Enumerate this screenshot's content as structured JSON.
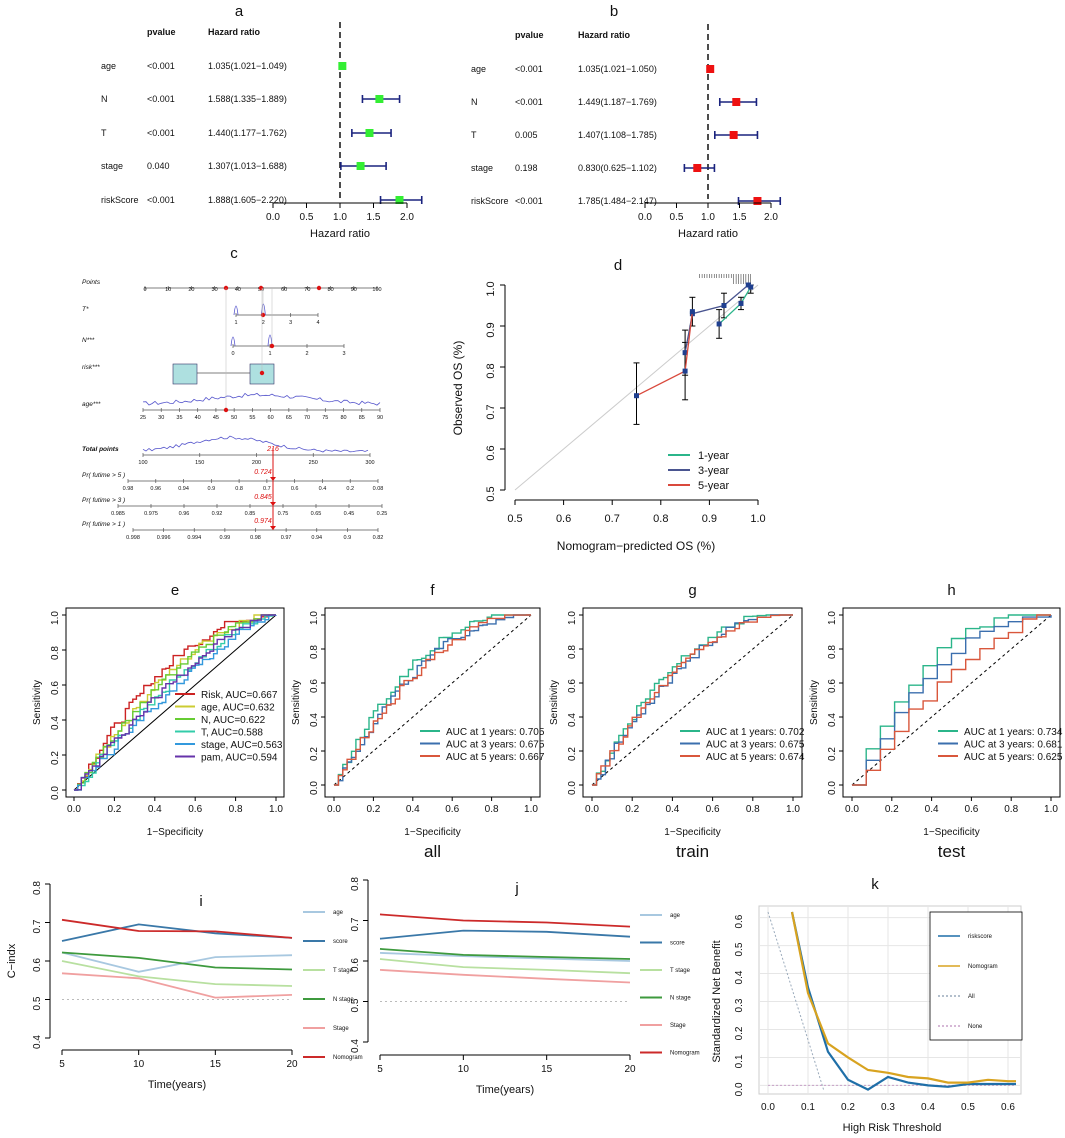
{
  "chart_data": [
    {
      "id": "a",
      "type": "forest",
      "label": "a",
      "col_pvalue": "pvalue",
      "col_hr": "Hazard ratio",
      "xlabel": "Hazard ratio",
      "ticks": [
        "0.0",
        "0.5",
        "1.0",
        "1.5",
        "2.0"
      ],
      "xlim": [
        0,
        2.0
      ],
      "rows": [
        {
          "name": "age",
          "pvalue": "<0.001",
          "hr_text": "1.035(1.021−1.049)",
          "hr": 1.035,
          "lo": 1.021,
          "hi": 1.049
        },
        {
          "name": "N",
          "pvalue": "<0.001",
          "hr_text": "1.588(1.335−1.889)",
          "hr": 1.588,
          "lo": 1.335,
          "hi": 1.889
        },
        {
          "name": "T",
          "pvalue": "<0.001",
          "hr_text": "1.440(1.177−1.762)",
          "hr": 1.44,
          "lo": 1.177,
          "hi": 1.762
        },
        {
          "name": "stage",
          "pvalue": "0.040",
          "hr_text": "1.307(1.013−1.688)",
          "hr": 1.307,
          "lo": 1.013,
          "hi": 1.688
        },
        {
          "name": "riskScore",
          "pvalue": "<0.001",
          "hr_text": "1.888(1.605−2.220)",
          "hr": 1.888,
          "lo": 1.605,
          "hi": 2.22
        }
      ],
      "marker_color": "#33ee33"
    },
    {
      "id": "b",
      "type": "forest",
      "label": "b",
      "col_pvalue": "pvalue",
      "col_hr": "Hazard ratio",
      "xlabel": "Hazard ratio",
      "ticks": [
        "0.0",
        "0.5",
        "1.0",
        "1.5",
        "2.0"
      ],
      "xlim": [
        0,
        2.0
      ],
      "rows": [
        {
          "name": "age",
          "pvalue": "<0.001",
          "hr_text": "1.035(1.021−1.050)",
          "hr": 1.035,
          "lo": 1.021,
          "hi": 1.05
        },
        {
          "name": "N",
          "pvalue": "<0.001",
          "hr_text": "1.449(1.187−1.769)",
          "hr": 1.449,
          "lo": 1.187,
          "hi": 1.769
        },
        {
          "name": "T",
          "pvalue": "0.005",
          "hr_text": "1.407(1.108−1.785)",
          "hr": 1.407,
          "lo": 1.108,
          "hi": 1.785
        },
        {
          "name": "stage",
          "pvalue": "0.198",
          "hr_text": "0.830(0.625−1.102)",
          "hr": 0.83,
          "lo": 0.625,
          "hi": 1.102
        },
        {
          "name": "riskScore",
          "pvalue": "<0.001",
          "hr_text": "1.785(1.484−2.147)",
          "hr": 1.785,
          "lo": 1.484,
          "hi": 2.147
        }
      ],
      "marker_color": "#ee1111"
    },
    {
      "id": "c",
      "type": "nomogram",
      "label": "c",
      "rows": [
        {
          "name": "Points",
          "ticks": [
            "0",
            "10",
            "20",
            "30",
            "40",
            "50",
            "60",
            "70",
            "80",
            "90",
            "100"
          ]
        },
        {
          "name": "T*",
          "ticks": [
            "1",
            "2",
            "3",
            "4"
          ]
        },
        {
          "name": "N***",
          "ticks": [
            "0",
            "1",
            "2",
            "3"
          ]
        },
        {
          "name": "risk***",
          "ticks": [
            "low",
            "high"
          ]
        },
        {
          "name": "age***",
          "ticks": [
            "25",
            "30",
            "35",
            "40",
            "45",
            "50",
            "55",
            "60",
            "65",
            "70",
            "75",
            "80",
            "85",
            "90"
          ]
        },
        {
          "name": "Total points",
          "ticks": [
            "100",
            "150",
            "200",
            "250",
            "300"
          ]
        },
        {
          "name": "Pr( futime > 5 )",
          "ticks": [
            "0.98",
            "0.96",
            "0.94",
            "0.9",
            "0.8",
            "0.7",
            "0.6",
            "0.4",
            "0.2",
            "0.08"
          ]
        },
        {
          "name": "Pr( futime > 3 )",
          "ticks": [
            "0.985",
            "0.975",
            "0.96",
            "0.92",
            "0.85",
            "0.75",
            "0.65",
            "0.45",
            "0.25"
          ]
        },
        {
          "name": "Pr( futime > 1 )",
          "ticks": [
            "0.998",
            "0.996",
            "0.994",
            "0.99",
            "0.98",
            "0.97",
            "0.94",
            "0.9",
            "0.82"
          ]
        }
      ],
      "total_points_value": "216",
      "prob_values": [
        "0.724",
        "0.845",
        "0.974"
      ]
    },
    {
      "id": "d",
      "type": "calibration",
      "label": "d",
      "xlabel": "Nomogram−predicted OS (%)",
      "ylabel": "Observed OS (%)",
      "ticks": [
        "0.5",
        "0.6",
        "0.7",
        "0.8",
        "0.9",
        "1.0"
      ],
      "xlim": [
        0.5,
        1.0
      ],
      "ylim": [
        0.5,
        1.0
      ],
      "series": [
        {
          "name": "1-year",
          "color": "#2bb58a",
          "x": [
            0.92,
            0.965,
            0.985
          ],
          "y": [
            0.905,
            0.955,
            0.995
          ]
        },
        {
          "name": "3-year",
          "color": "#4a5590",
          "x": [
            0.85,
            0.865,
            0.93,
            0.98
          ],
          "y": [
            0.835,
            0.93,
            0.95,
            1.0
          ]
        },
        {
          "name": "5-year",
          "color": "#d9493c",
          "x": [
            0.75,
            0.85,
            0.865
          ],
          "y": [
            0.73,
            0.79,
            0.935
          ]
        }
      ]
    },
    {
      "id": "e",
      "type": "roc",
      "label": "e",
      "xlabel": "1−Specificity",
      "ylabel": "Sensitivity",
      "ticks": [
        "0.0",
        "0.2",
        "0.4",
        "0.6",
        "0.8",
        "1.0"
      ],
      "series": [
        {
          "name": "Risk, AUC=0.667",
          "color": "#cc2222",
          "auc": 0.667
        },
        {
          "name": "age, AUC=0.632",
          "color": "#cccc33",
          "auc": 0.632
        },
        {
          "name": "N, AUC=0.622",
          "color": "#66cc33",
          "auc": 0.622
        },
        {
          "name": "T, AUC=0.588",
          "color": "#33ccaa",
          "auc": 0.588
        },
        {
          "name": "stage, AUC=0.563",
          "color": "#3399dd",
          "auc": 0.563
        },
        {
          "name": "pam, AUC=0.594",
          "color": "#6633aa",
          "auc": 0.594
        }
      ]
    },
    {
      "id": "f",
      "type": "roc",
      "label": "f",
      "caption": "all",
      "xlabel": "1−Specificity",
      "ylabel": "Sensitivity",
      "ticks": [
        "0.0",
        "0.2",
        "0.4",
        "0.6",
        "0.8",
        "1.0"
      ],
      "series": [
        {
          "name": "AUC at 1 years: 0.705",
          "color": "#2bb58a",
          "auc": 0.705
        },
        {
          "name": "AUC at 3 years: 0.675",
          "color": "#3b6fae",
          "auc": 0.675
        },
        {
          "name": "AUC at 5 years: 0.667",
          "color": "#d9573c",
          "auc": 0.667
        }
      ]
    },
    {
      "id": "g",
      "type": "roc",
      "label": "g",
      "caption": "train",
      "xlabel": "1−Specificity",
      "ylabel": "Sensitivity",
      "ticks": [
        "0.0",
        "0.2",
        "0.4",
        "0.6",
        "0.8",
        "1.0"
      ],
      "series": [
        {
          "name": "AUC at 1 years: 0.702",
          "color": "#2bb58a",
          "auc": 0.702
        },
        {
          "name": "AUC at 3 years: 0.675",
          "color": "#3b6fae",
          "auc": 0.675
        },
        {
          "name": "AUC at 5 years: 0.674",
          "color": "#d9573c",
          "auc": 0.674
        }
      ]
    },
    {
      "id": "h",
      "type": "roc",
      "label": "h",
      "caption": "test",
      "xlabel": "1−Specificity",
      "ylabel": "Sensitivity",
      "ticks": [
        "0.0",
        "0.2",
        "0.4",
        "0.6",
        "0.8",
        "1.0"
      ],
      "series": [
        {
          "name": "AUC at 1 years: 0.734",
          "color": "#2bb58a",
          "auc": 0.734
        },
        {
          "name": "AUC at 3 years: 0.681",
          "color": "#3b6fae",
          "auc": 0.681
        },
        {
          "name": "AUC at 5 years: 0.625",
          "color": "#d9573c",
          "auc": 0.625
        }
      ]
    },
    {
      "id": "i",
      "type": "line",
      "label": "i",
      "xlabel": "Time(years)",
      "ylabel": "C−indx",
      "x": [
        5,
        10,
        15,
        20
      ],
      "xticks": [
        "5",
        "10",
        "15",
        "20"
      ],
      "yticks": [
        "0.4",
        "0.5",
        "0.6",
        "0.7",
        "0.8"
      ],
      "xlim": [
        5,
        20
      ],
      "ylim": [
        0.4,
        0.8
      ],
      "reference": 0.5,
      "series": [
        {
          "name": "age",
          "color": "#a8c8e0",
          "values": [
            0.622,
            0.572,
            0.61,
            0.615
          ]
        },
        {
          "name": "score",
          "color": "#3a78a8",
          "values": [
            0.652,
            0.695,
            0.672,
            0.66
          ]
        },
        {
          "name": "T stage",
          "color": "#b8e0a0",
          "values": [
            0.6,
            0.56,
            0.54,
            0.535
          ]
        },
        {
          "name": "N stage",
          "color": "#3e9a3e",
          "values": [
            0.622,
            0.608,
            0.583,
            0.578
          ]
        },
        {
          "name": "Stage",
          "color": "#f0a0a0",
          "values": [
            0.568,
            0.555,
            0.505,
            0.512
          ]
        },
        {
          "name": "Nomogram",
          "color": "#cc2a2a",
          "values": [
            0.707,
            0.678,
            0.677,
            0.66
          ]
        }
      ]
    },
    {
      "id": "j",
      "type": "line",
      "label": "j",
      "xlabel": "Time(years)",
      "ylabel": "",
      "x": [
        5,
        10,
        15,
        20
      ],
      "xticks": [
        "5",
        "10",
        "15",
        "20"
      ],
      "yticks": [
        "0.4",
        "0.5",
        "0.6",
        "0.7",
        "0.8"
      ],
      "xlim": [
        5,
        20
      ],
      "ylim": [
        0.4,
        0.8
      ],
      "reference": 0.5,
      "series": [
        {
          "name": "age",
          "color": "#a8c8e0",
          "values": [
            0.62,
            0.612,
            0.606,
            0.6
          ]
        },
        {
          "name": "score",
          "color": "#3a78a8",
          "values": [
            0.655,
            0.675,
            0.672,
            0.66
          ]
        },
        {
          "name": "T stage",
          "color": "#b8e0a0",
          "values": [
            0.605,
            0.585,
            0.578,
            0.57
          ]
        },
        {
          "name": "N stage",
          "color": "#3e9a3e",
          "values": [
            0.63,
            0.615,
            0.61,
            0.605
          ]
        },
        {
          "name": "Stage",
          "color": "#f0a0a0",
          "values": [
            0.578,
            0.566,
            0.556,
            0.547
          ]
        },
        {
          "name": "Nomogram",
          "color": "#cc2a2a",
          "values": [
            0.715,
            0.7,
            0.695,
            0.685
          ]
        }
      ]
    },
    {
      "id": "k",
      "type": "line",
      "label": "k",
      "xlabel": "High Risk Threshold",
      "ylabel": "Standardized Net Benefit",
      "xticks": [
        "0.0",
        "0.1",
        "0.2",
        "0.3",
        "0.4",
        "0.5",
        "0.6"
      ],
      "yticks": [
        "0.0",
        "0.1",
        "0.2",
        "0.3",
        "0.4",
        "0.5",
        "0.6"
      ],
      "xlim": [
        0,
        0.62
      ],
      "ylim": [
        -0.02,
        0.62
      ],
      "series": [
        {
          "name": "riskscore",
          "color": "#1f6fa8",
          "x": [
            0.06,
            0.1,
            0.15,
            0.2,
            0.25,
            0.3,
            0.35,
            0.4,
            0.45,
            0.5,
            0.55,
            0.6,
            0.62
          ],
          "values": [
            0.62,
            0.35,
            0.12,
            0.02,
            -0.015,
            0.03,
            0.01,
            0.0,
            -0.005,
            0.005,
            0.005,
            0.005,
            0.005
          ]
        },
        {
          "name": "Nomogram",
          "color": "#d8a320",
          "x": [
            0.06,
            0.1,
            0.15,
            0.2,
            0.25,
            0.3,
            0.35,
            0.4,
            0.45,
            0.5,
            0.55,
            0.6,
            0.62
          ],
          "values": [
            0.62,
            0.33,
            0.15,
            0.1,
            0.055,
            0.045,
            0.03,
            0.025,
            0.01,
            0.01,
            0.02,
            0.015,
            0.015
          ]
        },
        {
          "name": "All",
          "color": "#9aaabb"
        },
        {
          "name": "None",
          "color": "#c8a0c8"
        }
      ]
    }
  ]
}
